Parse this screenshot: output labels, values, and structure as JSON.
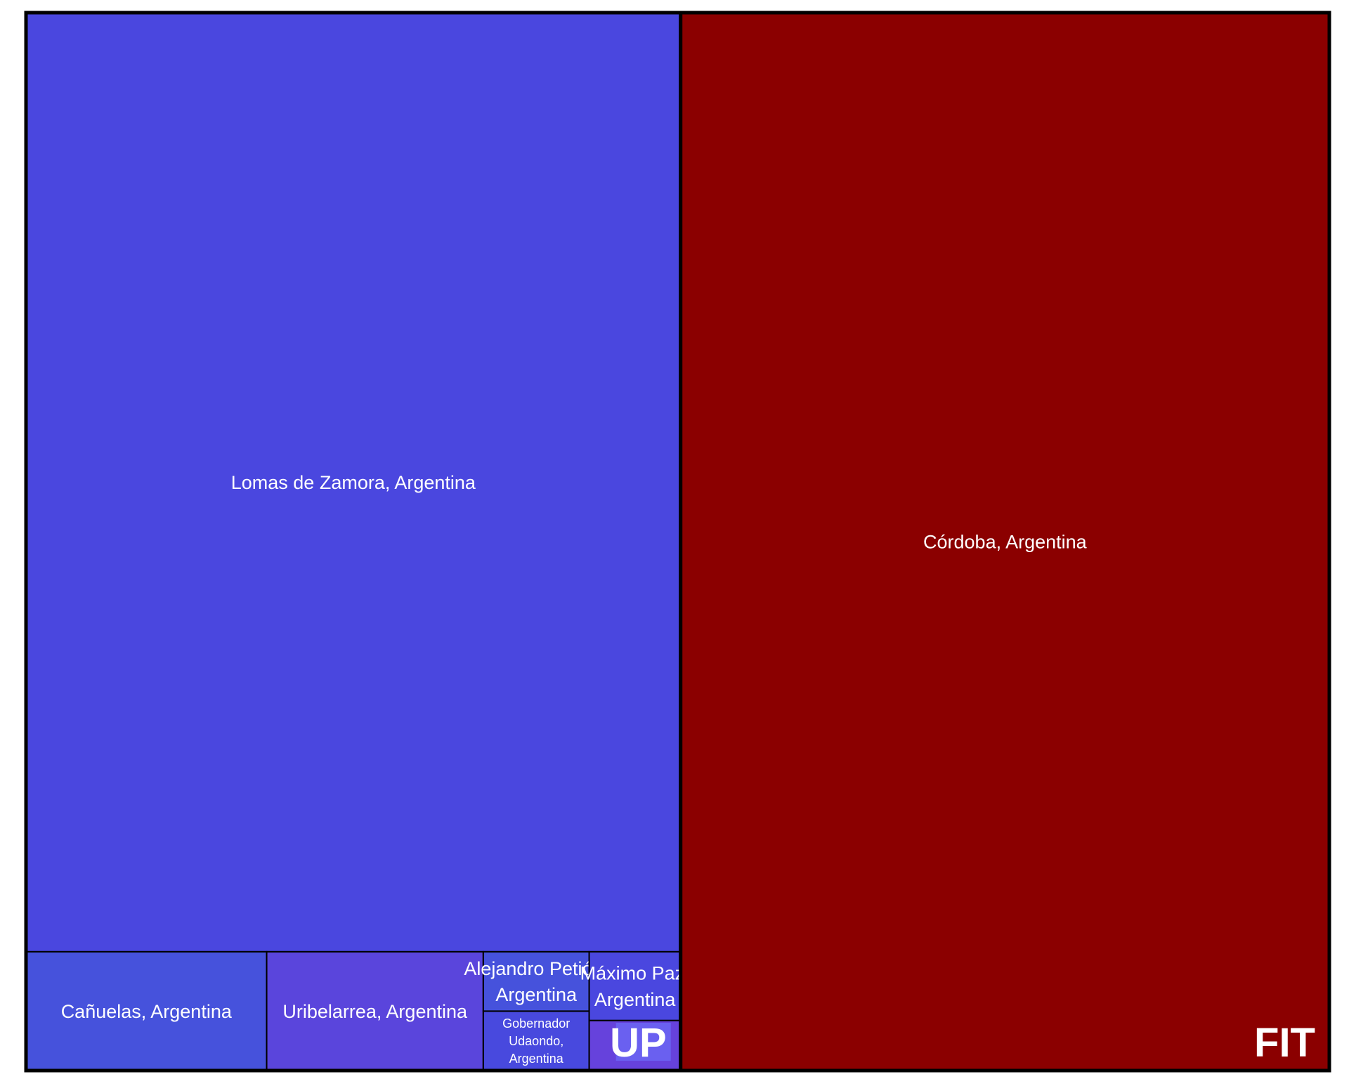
{
  "chart_data": {
    "type": "treemap",
    "groups": [
      {
        "name": "UP",
        "color": "#4a47df",
        "label_bg": "#6a60f0",
        "items": [
          {
            "label": "Lomas de Zamora, Argentina",
            "lines": [
              "Lomas de Zamora, Argentina"
            ],
            "value": 1075,
            "color": "#4a47df"
          },
          {
            "label": "Cañuelas, Argentina",
            "lines": [
              "Cañuelas, Argentina"
            ],
            "value": 50,
            "color": "#4652dc"
          },
          {
            "label": "Uribelarrea, Argentina",
            "lines": [
              "Uribelarrea, Argentina"
            ],
            "value": 45,
            "color": "#5a45dc"
          },
          {
            "label": "Alejandro Petión, Argentina",
            "lines": [
              "Alejandro Petión,",
              "Argentina"
            ],
            "value": 11,
            "color": "#4652dc"
          },
          {
            "label": "Gobernador Udaondo, Argentina",
            "lines": [
              "Gobernador",
              "Udaondo,",
              "Argentina"
            ],
            "value": 11,
            "color": "#4849de"
          },
          {
            "label": "Máximo Paz, Argentina",
            "lines": [
              "Máximo Paz,",
              "Argentina"
            ],
            "value": 11,
            "color": "#4a47df"
          },
          {
            "label": "",
            "lines": [],
            "value": 8,
            "color": "#6642dc"
          }
        ]
      },
      {
        "name": "FIT",
        "color": "#8b0000",
        "items": [
          {
            "label": "Córdoba, Argentina",
            "lines": [
              "Córdoba, Argentina"
            ],
            "value": 1200,
            "color": "#8b0000"
          }
        ]
      }
    ]
  }
}
